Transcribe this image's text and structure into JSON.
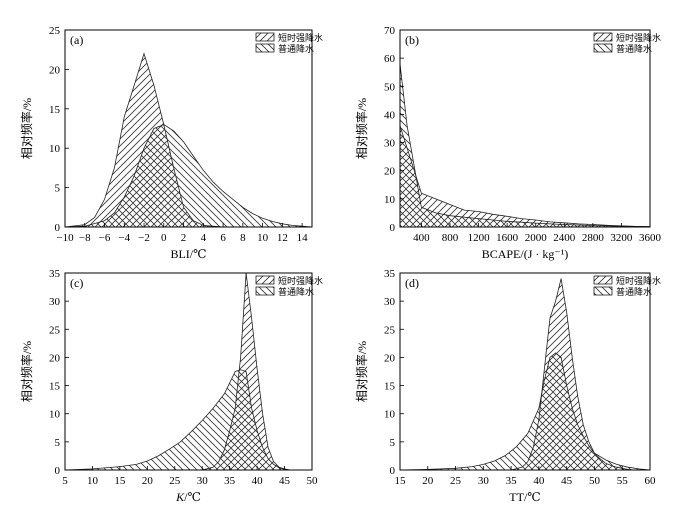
{
  "figure": {
    "legend_labels": [
      "短时强降水",
      "普通降水"
    ]
  },
  "chart_data": [
    {
      "panel_label": "(a)",
      "type": "area",
      "xlabel": "BLI/℃",
      "ylabel": "相对频率/%",
      "xlim": [
        -10,
        15
      ],
      "ylim": [
        0,
        25
      ],
      "xticks": [
        -10,
        -8,
        -6,
        -4,
        -2,
        0,
        2,
        4,
        6,
        8,
        10,
        12,
        14
      ],
      "yticks": [
        0,
        5,
        10,
        15,
        20,
        25
      ],
      "legend_position": "top-right",
      "series": [
        {
          "name": "短时强降水",
          "x": [
            -10,
            -8,
            -7,
            -6,
            -5,
            -4,
            -3,
            -2,
            -1,
            0,
            1,
            2,
            3,
            4,
            5,
            6
          ],
          "y": [
            0,
            0.3,
            1.2,
            3.5,
            7.5,
            14,
            18,
            22,
            18,
            13,
            7.5,
            2.5,
            0.8,
            0.2,
            0.1,
            0
          ]
        },
        {
          "name": "普通降水",
          "x": [
            -10,
            -8,
            -6,
            -5,
            -4,
            -3,
            -2,
            -1,
            0,
            1,
            2,
            3,
            4,
            5,
            6,
            7,
            8,
            9,
            10,
            11,
            12,
            13,
            14,
            15
          ],
          "y": [
            0,
            0.1,
            0.8,
            1.8,
            3.8,
            6.5,
            10,
            12.5,
            13,
            12.2,
            10.8,
            9,
            7.2,
            5.7,
            4.5,
            3.5,
            2.5,
            1.7,
            1.1,
            0.7,
            0.4,
            0.2,
            0.1,
            0
          ]
        }
      ]
    },
    {
      "panel_label": "(b)",
      "type": "area",
      "xlabel": "BCAPE/(J · kg⁻¹)",
      "ylabel": "相对频率/%",
      "xlim": [
        100,
        3600
      ],
      "ylim": [
        0,
        70
      ],
      "xticks": [
        400,
        800,
        1200,
        1600,
        2000,
        2400,
        2800,
        3200,
        3600
      ],
      "yticks": [
        0,
        10,
        20,
        30,
        40,
        50,
        60,
        70
      ],
      "legend_position": "top-right",
      "series": [
        {
          "name": "短时强降水",
          "x": [
            100,
            400,
            600,
            800,
            1000,
            1200,
            1400,
            1600,
            1800,
            2000,
            2200,
            2400,
            2600,
            2800,
            3000,
            3200,
            3400,
            3600
          ],
          "y": [
            36,
            12,
            10,
            8,
            6,
            5.5,
            4.5,
            3.8,
            3,
            2.5,
            1.8,
            1.5,
            1.1,
            0.9,
            0.6,
            0.4,
            0.2,
            0.1
          ]
        },
        {
          "name": "普通降水",
          "x": [
            100,
            200,
            400,
            600,
            800,
            1000,
            1200,
            1400,
            1600,
            1800,
            2000,
            2200,
            2400,
            2600,
            2800,
            3000,
            3200,
            3400,
            3600
          ],
          "y": [
            58,
            36,
            7,
            5,
            4,
            3.5,
            3,
            2.5,
            2,
            1.7,
            1.4,
            1.1,
            0.9,
            0.7,
            0.5,
            0.4,
            0.3,
            0.2,
            0.1
          ]
        }
      ]
    },
    {
      "panel_label": "(c)",
      "type": "area",
      "xlabel_italic": "K",
      "xlabel": "/℃",
      "ylabel": "相对频率/%",
      "xlim": [
        5,
        50
      ],
      "ylim": [
        0,
        35
      ],
      "xticks": [
        5,
        10,
        15,
        20,
        25,
        30,
        35,
        40,
        45,
        50
      ],
      "yticks": [
        0,
        5,
        10,
        15,
        20,
        25,
        30,
        35
      ],
      "legend_position": "top-right",
      "series": [
        {
          "name": "短时强降水",
          "x": [
            30,
            32,
            33,
            34,
            35,
            36,
            37,
            38,
            39,
            40,
            41,
            42,
            43,
            44,
            45,
            46
          ],
          "y": [
            0,
            0.5,
            1.5,
            3.5,
            7,
            11,
            20,
            35,
            27,
            18,
            10,
            4,
            1.5,
            0.5,
            0.2,
            0
          ]
        },
        {
          "name": "普通降水",
          "x": [
            5,
            10,
            15,
            18,
            20,
            22,
            24,
            26,
            28,
            30,
            32,
            34,
            35,
            36,
            37,
            38,
            39,
            40,
            41,
            42,
            43,
            44,
            45,
            46
          ],
          "y": [
            0,
            0.2,
            0.6,
            1,
            1.6,
            2.5,
            3.7,
            5,
            6.8,
            8.8,
            11,
            13.5,
            15.5,
            17.5,
            17.8,
            17.5,
            11,
            7,
            4,
            2,
            1,
            0.4,
            0.1,
            0
          ]
        }
      ]
    },
    {
      "panel_label": "(d)",
      "type": "area",
      "xlabel": "TT/℃",
      "ylabel": "相对频率/%",
      "xlim": [
        15,
        60
      ],
      "ylim": [
        0,
        35
      ],
      "xticks": [
        15,
        20,
        25,
        30,
        35,
        40,
        45,
        50,
        55,
        60
      ],
      "yticks": [
        0,
        5,
        10,
        15,
        20,
        25,
        30,
        35
      ],
      "legend_position": "top-right",
      "series": [
        {
          "name": "短时强降水",
          "x": [
            35,
            37,
            38,
            39,
            40,
            41,
            42,
            43,
            44,
            45,
            46,
            47,
            48,
            49,
            50,
            51,
            52,
            53,
            54,
            55,
            56,
            57
          ],
          "y": [
            0,
            0.5,
            1.5,
            4,
            9,
            18,
            27,
            30,
            34,
            28,
            20,
            13,
            8,
            5,
            3,
            2,
            1.2,
            0.8,
            0.5,
            0.3,
            0.1,
            0
          ]
        },
        {
          "name": "普通降水",
          "x": [
            15,
            20,
            25,
            28,
            30,
            32,
            34,
            36,
            38,
            40,
            41,
            42,
            43,
            44,
            45,
            46,
            47,
            48,
            49,
            50,
            52,
            54,
            56,
            58,
            60
          ],
          "y": [
            0,
            0.1,
            0.3,
            0.6,
            1,
            1.6,
            2.6,
            4.2,
            6.5,
            11,
            16,
            20,
            20.8,
            20,
            15,
            11,
            8,
            6,
            4.3,
            3,
            1.8,
            1,
            0.5,
            0.2,
            0
          ]
        }
      ]
    }
  ]
}
